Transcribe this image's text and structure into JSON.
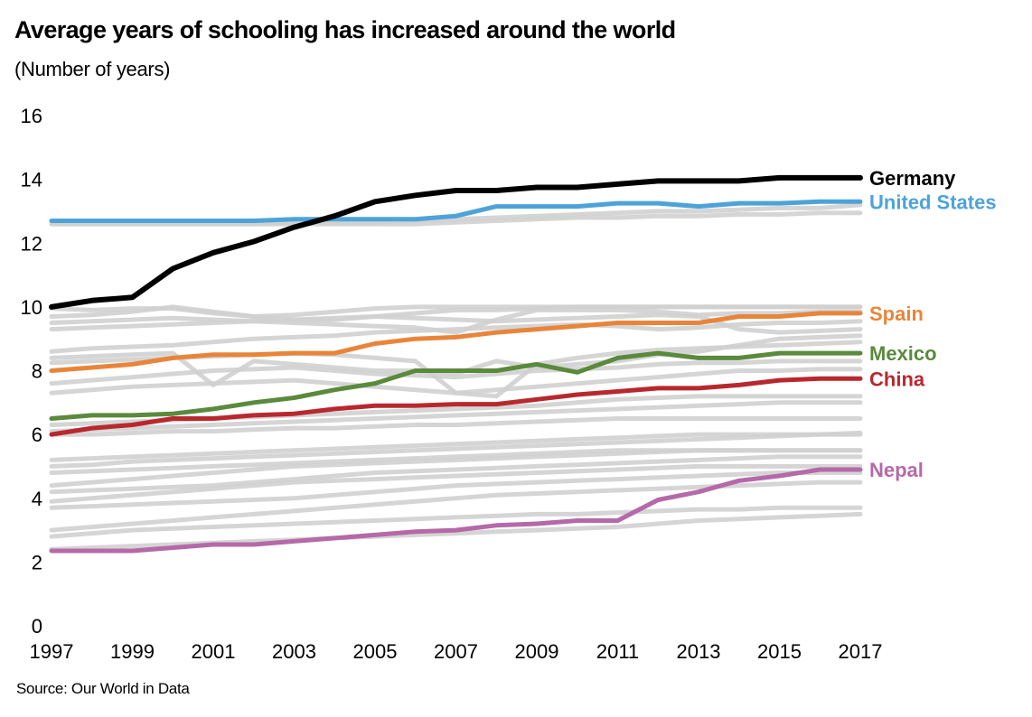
{
  "chart_data": {
    "type": "line",
    "title": "Average years of schooling has increased around the world",
    "subtitle": "(Number of years)",
    "source": "Source: Our World in Data",
    "xlabel": "",
    "ylabel": "Number of years",
    "x": [
      1997,
      1998,
      1999,
      2000,
      2001,
      2002,
      2003,
      2004,
      2005,
      2006,
      2007,
      2008,
      2009,
      2010,
      2011,
      2012,
      2013,
      2014,
      2015,
      2016,
      2017
    ],
    "x_ticks": [
      "1997",
      "1999",
      "2001",
      "2003",
      "2005",
      "2007",
      "2009",
      "2011",
      "2013",
      "2015",
      "2017"
    ],
    "y_ticks": [
      "0",
      "2",
      "4",
      "6",
      "8",
      "10",
      "12",
      "14",
      "16"
    ],
    "xlim": [
      1997,
      2017
    ],
    "ylim": [
      0,
      16
    ],
    "grid": false,
    "legend": "direct labels at right end of lines",
    "series": [
      {
        "name": "Germany",
        "color": "#000000",
        "values": [
          10.0,
          10.2,
          10.3,
          11.2,
          11.7,
          12.05,
          12.5,
          12.85,
          13.3,
          13.5,
          13.65,
          13.65,
          13.75,
          13.75,
          13.85,
          13.95,
          13.95,
          13.95,
          14.05,
          14.05,
          14.05
        ]
      },
      {
        "name": "United States",
        "color": "#4da3d9",
        "values": [
          12.7,
          12.7,
          12.7,
          12.7,
          12.7,
          12.7,
          12.75,
          12.75,
          12.75,
          12.75,
          12.85,
          13.15,
          13.15,
          13.15,
          13.25,
          13.25,
          13.15,
          13.25,
          13.25,
          13.3,
          13.3
        ]
      },
      {
        "name": "Spain",
        "color": "#e8853a",
        "values": [
          8.0,
          8.1,
          8.2,
          8.4,
          8.5,
          8.5,
          8.55,
          8.55,
          8.85,
          9.0,
          9.05,
          9.2,
          9.3,
          9.4,
          9.5,
          9.5,
          9.5,
          9.7,
          9.7,
          9.8,
          9.8
        ]
      },
      {
        "name": "Mexico",
        "color": "#5a8a3c",
        "values": [
          6.5,
          6.6,
          6.6,
          6.65,
          6.8,
          7.0,
          7.15,
          7.4,
          7.6,
          8.0,
          8.0,
          8.0,
          8.2,
          7.95,
          8.4,
          8.55,
          8.4,
          8.4,
          8.55,
          8.55,
          8.55
        ]
      },
      {
        "name": "China",
        "color": "#b8282e",
        "values": [
          6.0,
          6.2,
          6.3,
          6.5,
          6.5,
          6.6,
          6.65,
          6.8,
          6.9,
          6.9,
          6.95,
          6.95,
          7.1,
          7.25,
          7.35,
          7.45,
          7.45,
          7.55,
          7.7,
          7.75,
          7.75
        ]
      },
      {
        "name": "Nepal",
        "color": "#b569a8",
        "values": [
          2.35,
          2.35,
          2.35,
          2.45,
          2.55,
          2.55,
          2.65,
          2.75,
          2.85,
          2.95,
          3.0,
          3.15,
          3.2,
          3.3,
          3.3,
          3.95,
          4.2,
          4.55,
          4.7,
          4.9,
          4.9
        ]
      }
    ],
    "background_series": {
      "name": "Other countries",
      "color": "#d0d0d0",
      "values": [
        [
          9.95,
          9.9,
          9.95,
          9.95,
          9.8,
          9.7,
          9.75,
          9.85,
          9.95,
          10.0,
          10.0,
          10.0,
          10.0,
          10.0,
          10.0,
          10.0,
          10.0,
          10.0,
          10.0,
          10.0,
          10.0
        ],
        [
          9.7,
          9.75,
          9.85,
          10.0,
          9.85,
          9.7,
          9.6,
          9.6,
          9.7,
          9.8,
          9.9,
          9.9,
          9.95,
          10.0,
          10.0,
          10.0,
          10.0,
          10.0,
          10.0,
          10.0,
          10.0
        ],
        [
          9.5,
          9.55,
          9.6,
          9.65,
          9.6,
          9.55,
          9.5,
          9.45,
          9.4,
          9.35,
          9.2,
          9.6,
          9.9,
          9.9,
          9.9,
          9.85,
          9.75,
          9.8,
          9.8,
          9.85,
          9.85
        ],
        [
          9.3,
          9.35,
          9.4,
          9.45,
          9.5,
          9.55,
          9.6,
          9.65,
          9.7,
          9.65,
          9.6,
          9.55,
          9.6,
          9.65,
          9.7,
          9.75,
          9.7,
          9.3,
          9.2,
          9.25,
          9.3
        ],
        [
          8.6,
          8.7,
          8.75,
          8.8,
          8.9,
          9.0,
          9.05,
          9.1,
          9.2,
          9.25,
          9.3,
          9.35,
          9.4,
          9.45,
          9.4,
          9.3,
          9.35,
          9.45,
          9.5,
          9.5,
          9.55
        ],
        [
          8.4,
          8.45,
          8.5,
          8.55,
          7.55,
          8.3,
          8.2,
          8.1,
          8.0,
          8.0,
          7.9,
          8.3,
          8.1,
          8.2,
          8.3,
          8.5,
          8.6,
          8.8,
          9.0,
          9.05,
          9.1
        ],
        [
          8.25,
          8.3,
          8.35,
          8.4,
          8.45,
          8.5,
          8.55,
          8.5,
          8.4,
          8.3,
          7.3,
          7.2,
          8.2,
          8.4,
          8.55,
          8.65,
          8.7,
          8.75,
          8.8,
          8.85,
          8.9
        ],
        [
          7.6,
          7.7,
          7.8,
          7.9,
          8.0,
          8.05,
          8.1,
          8.0,
          7.9,
          7.85,
          7.8,
          7.9,
          8.0,
          8.05,
          8.1,
          8.2,
          8.25,
          8.25,
          8.3,
          8.3,
          8.3
        ],
        [
          7.3,
          7.4,
          7.5,
          7.55,
          7.6,
          7.65,
          7.7,
          7.6,
          7.5,
          7.4,
          7.3,
          7.4,
          7.5,
          7.6,
          7.7,
          7.8,
          7.9,
          8.0,
          8.0,
          8.05,
          8.05
        ],
        [
          6.3,
          6.35,
          6.4,
          6.45,
          6.5,
          6.55,
          6.6,
          6.65,
          6.7,
          6.75,
          6.8,
          6.85,
          6.9,
          7.0,
          7.1,
          7.15,
          7.2,
          7.2,
          7.2,
          7.2,
          7.2
        ],
        [
          6.1,
          6.15,
          6.2,
          6.25,
          6.3,
          6.35,
          6.4,
          6.45,
          6.5,
          6.55,
          6.6,
          6.65,
          6.7,
          6.75,
          6.8,
          6.85,
          6.9,
          6.95,
          7.0,
          7.0,
          7.0
        ],
        [
          6.0,
          6.0,
          6.05,
          6.1,
          6.1,
          6.15,
          6.2,
          6.2,
          6.25,
          6.3,
          6.3,
          6.35,
          6.4,
          6.45,
          6.5,
          6.5,
          6.5,
          6.5,
          6.5,
          6.5,
          6.5
        ],
        [
          5.2,
          5.25,
          5.3,
          5.35,
          5.4,
          5.45,
          5.5,
          5.55,
          5.6,
          5.65,
          5.7,
          5.75,
          5.8,
          5.85,
          5.9,
          5.95,
          6.0,
          6.0,
          6.0,
          6.0,
          6.0
        ],
        [
          5.0,
          5.05,
          5.15,
          5.2,
          5.25,
          5.3,
          5.35,
          5.4,
          5.45,
          5.5,
          5.55,
          5.6,
          5.65,
          5.7,
          5.75,
          5.8,
          5.85,
          5.9,
          5.95,
          6.0,
          6.05
        ],
        [
          4.8,
          4.85,
          4.9,
          4.95,
          5.0,
          5.05,
          5.1,
          5.15,
          5.2,
          5.25,
          5.3,
          5.35,
          5.4,
          5.45,
          5.5,
          5.5,
          5.5,
          5.5,
          5.5,
          5.5,
          5.5
        ],
        [
          4.4,
          4.5,
          4.6,
          4.7,
          4.8,
          4.9,
          5.0,
          5.05,
          5.1,
          5.15,
          5.2,
          5.25,
          5.3,
          5.35,
          5.4,
          5.45,
          5.5,
          5.5,
          5.5,
          5.5,
          5.5
        ],
        [
          4.2,
          4.25,
          4.3,
          4.35,
          4.4,
          4.5,
          4.6,
          4.7,
          4.8,
          4.85,
          4.9,
          4.95,
          5.0,
          5.05,
          5.1,
          5.15,
          5.2,
          5.25,
          5.3,
          5.3,
          5.3
        ],
        [
          3.9,
          4.0,
          4.1,
          4.2,
          4.3,
          4.4,
          4.5,
          4.55,
          4.6,
          4.65,
          4.7,
          4.75,
          4.8,
          4.85,
          4.9,
          4.95,
          5.0,
          5.0,
          5.0,
          5.0,
          5.0
        ],
        [
          3.7,
          3.75,
          3.8,
          3.85,
          3.9,
          3.95,
          4.0,
          4.1,
          4.2,
          4.3,
          4.4,
          4.45,
          4.5,
          4.55,
          4.6,
          4.65,
          4.7,
          4.75,
          4.8,
          4.8,
          4.8
        ],
        [
          3.0,
          3.1,
          3.2,
          3.3,
          3.4,
          3.5,
          3.6,
          3.7,
          3.8,
          3.9,
          4.0,
          4.1,
          4.15,
          4.2,
          4.25,
          4.3,
          4.35,
          4.4,
          4.45,
          4.5,
          4.5
        ],
        [
          2.8,
          2.9,
          3.0,
          3.05,
          3.1,
          3.15,
          3.2,
          3.25,
          3.3,
          3.35,
          3.4,
          3.45,
          3.5,
          3.5,
          3.55,
          3.6,
          3.65,
          3.65,
          3.7,
          3.7,
          3.7
        ],
        [
          2.4,
          2.45,
          2.5,
          2.55,
          2.6,
          2.65,
          2.7,
          2.75,
          2.8,
          2.85,
          2.9,
          2.95,
          3.0,
          3.05,
          3.1,
          3.2,
          3.3,
          3.35,
          3.4,
          3.45,
          3.5
        ],
        [
          12.6,
          12.6,
          12.6,
          12.6,
          12.6,
          12.6,
          12.65,
          12.65,
          12.65,
          12.7,
          12.75,
          12.8,
          12.85,
          12.9,
          12.95,
          13.0,
          13.0,
          13.05,
          13.1,
          13.1,
          13.2
        ],
        [
          12.6,
          12.6,
          12.6,
          12.6,
          12.6,
          12.6,
          12.6,
          12.6,
          12.6,
          12.6,
          12.65,
          12.7,
          12.75,
          12.8,
          12.8,
          12.85,
          12.85,
          12.9,
          12.9,
          12.95,
          12.95
        ]
      ]
    }
  }
}
